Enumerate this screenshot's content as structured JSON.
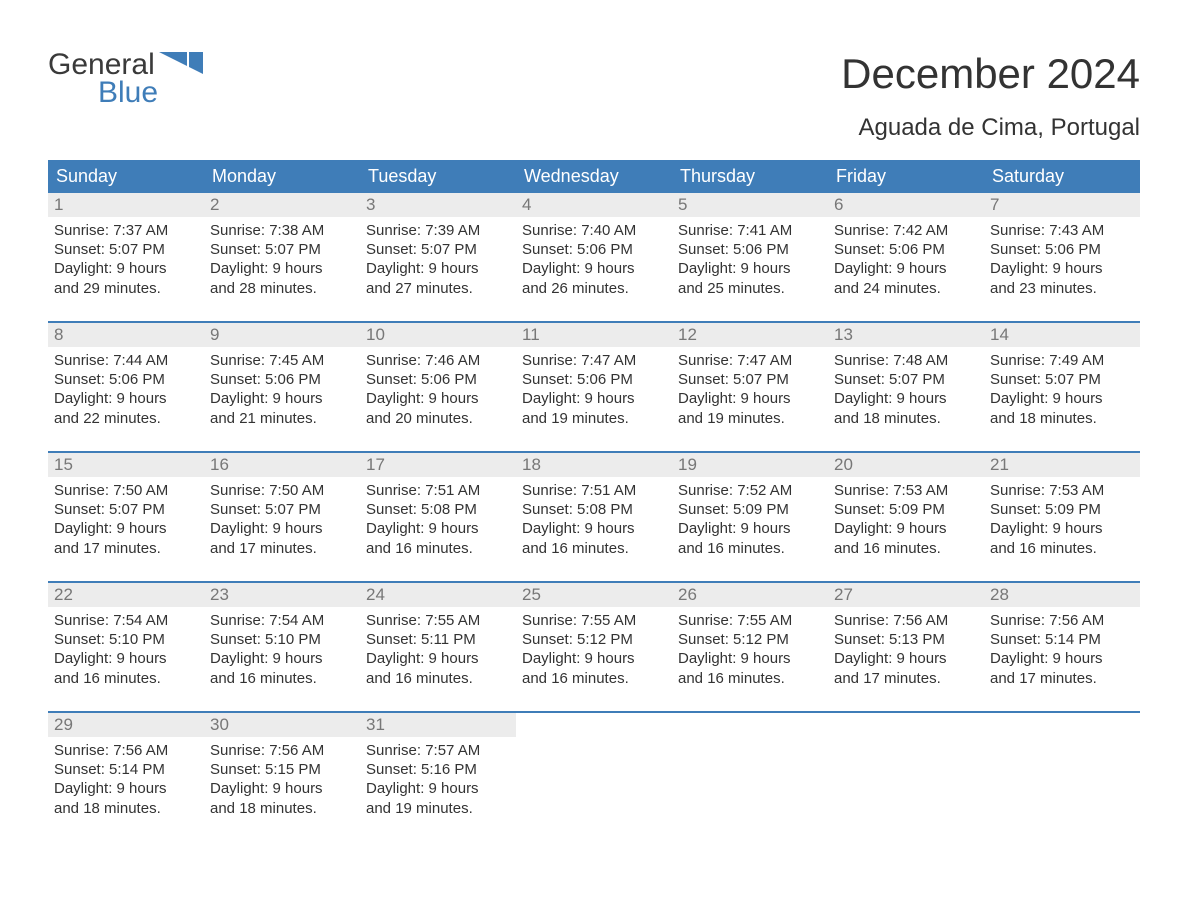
{
  "logo": {
    "word1": "General",
    "word2": "Blue"
  },
  "title": "December 2024",
  "subtitle": "Aguada de Cima, Portugal",
  "colors": {
    "header_bg": "#3f7db8",
    "header_text": "#ffffff",
    "daynum_bg": "#ececec",
    "daynum_text": "#777777",
    "body_text": "#333333",
    "rule": "#3f7db8",
    "page_bg": "#ffffff",
    "logo_gray": "#3a3a3a",
    "logo_blue": "#3f7db8"
  },
  "typography": {
    "title_fontsize": 42,
    "subtitle_fontsize": 24,
    "header_fontsize": 18,
    "daynum_fontsize": 17,
    "body_fontsize": 15,
    "logo_fontsize": 30
  },
  "layout": {
    "columns": 7,
    "weeks": 5
  },
  "days_of_week": [
    "Sunday",
    "Monday",
    "Tuesday",
    "Wednesday",
    "Thursday",
    "Friday",
    "Saturday"
  ],
  "weeks": [
    [
      {
        "num": "1",
        "sunrise": "Sunrise: 7:37 AM",
        "sunset": "Sunset: 5:07 PM",
        "dl1": "Daylight: 9 hours",
        "dl2": "and 29 minutes."
      },
      {
        "num": "2",
        "sunrise": "Sunrise: 7:38 AM",
        "sunset": "Sunset: 5:07 PM",
        "dl1": "Daylight: 9 hours",
        "dl2": "and 28 minutes."
      },
      {
        "num": "3",
        "sunrise": "Sunrise: 7:39 AM",
        "sunset": "Sunset: 5:07 PM",
        "dl1": "Daylight: 9 hours",
        "dl2": "and 27 minutes."
      },
      {
        "num": "4",
        "sunrise": "Sunrise: 7:40 AM",
        "sunset": "Sunset: 5:06 PM",
        "dl1": "Daylight: 9 hours",
        "dl2": "and 26 minutes."
      },
      {
        "num": "5",
        "sunrise": "Sunrise: 7:41 AM",
        "sunset": "Sunset: 5:06 PM",
        "dl1": "Daylight: 9 hours",
        "dl2": "and 25 minutes."
      },
      {
        "num": "6",
        "sunrise": "Sunrise: 7:42 AM",
        "sunset": "Sunset: 5:06 PM",
        "dl1": "Daylight: 9 hours",
        "dl2": "and 24 minutes."
      },
      {
        "num": "7",
        "sunrise": "Sunrise: 7:43 AM",
        "sunset": "Sunset: 5:06 PM",
        "dl1": "Daylight: 9 hours",
        "dl2": "and 23 minutes."
      }
    ],
    [
      {
        "num": "8",
        "sunrise": "Sunrise: 7:44 AM",
        "sunset": "Sunset: 5:06 PM",
        "dl1": "Daylight: 9 hours",
        "dl2": "and 22 minutes."
      },
      {
        "num": "9",
        "sunrise": "Sunrise: 7:45 AM",
        "sunset": "Sunset: 5:06 PM",
        "dl1": "Daylight: 9 hours",
        "dl2": "and 21 minutes."
      },
      {
        "num": "10",
        "sunrise": "Sunrise: 7:46 AM",
        "sunset": "Sunset: 5:06 PM",
        "dl1": "Daylight: 9 hours",
        "dl2": "and 20 minutes."
      },
      {
        "num": "11",
        "sunrise": "Sunrise: 7:47 AM",
        "sunset": "Sunset: 5:06 PM",
        "dl1": "Daylight: 9 hours",
        "dl2": "and 19 minutes."
      },
      {
        "num": "12",
        "sunrise": "Sunrise: 7:47 AM",
        "sunset": "Sunset: 5:07 PM",
        "dl1": "Daylight: 9 hours",
        "dl2": "and 19 minutes."
      },
      {
        "num": "13",
        "sunrise": "Sunrise: 7:48 AM",
        "sunset": "Sunset: 5:07 PM",
        "dl1": "Daylight: 9 hours",
        "dl2": "and 18 minutes."
      },
      {
        "num": "14",
        "sunrise": "Sunrise: 7:49 AM",
        "sunset": "Sunset: 5:07 PM",
        "dl1": "Daylight: 9 hours",
        "dl2": "and 18 minutes."
      }
    ],
    [
      {
        "num": "15",
        "sunrise": "Sunrise: 7:50 AM",
        "sunset": "Sunset: 5:07 PM",
        "dl1": "Daylight: 9 hours",
        "dl2": "and 17 minutes."
      },
      {
        "num": "16",
        "sunrise": "Sunrise: 7:50 AM",
        "sunset": "Sunset: 5:07 PM",
        "dl1": "Daylight: 9 hours",
        "dl2": "and 17 minutes."
      },
      {
        "num": "17",
        "sunrise": "Sunrise: 7:51 AM",
        "sunset": "Sunset: 5:08 PM",
        "dl1": "Daylight: 9 hours",
        "dl2": "and 16 minutes."
      },
      {
        "num": "18",
        "sunrise": "Sunrise: 7:51 AM",
        "sunset": "Sunset: 5:08 PM",
        "dl1": "Daylight: 9 hours",
        "dl2": "and 16 minutes."
      },
      {
        "num": "19",
        "sunrise": "Sunrise: 7:52 AM",
        "sunset": "Sunset: 5:09 PM",
        "dl1": "Daylight: 9 hours",
        "dl2": "and 16 minutes."
      },
      {
        "num": "20",
        "sunrise": "Sunrise: 7:53 AM",
        "sunset": "Sunset: 5:09 PM",
        "dl1": "Daylight: 9 hours",
        "dl2": "and 16 minutes."
      },
      {
        "num": "21",
        "sunrise": "Sunrise: 7:53 AM",
        "sunset": "Sunset: 5:09 PM",
        "dl1": "Daylight: 9 hours",
        "dl2": "and 16 minutes."
      }
    ],
    [
      {
        "num": "22",
        "sunrise": "Sunrise: 7:54 AM",
        "sunset": "Sunset: 5:10 PM",
        "dl1": "Daylight: 9 hours",
        "dl2": "and 16 minutes."
      },
      {
        "num": "23",
        "sunrise": "Sunrise: 7:54 AM",
        "sunset": "Sunset: 5:10 PM",
        "dl1": "Daylight: 9 hours",
        "dl2": "and 16 minutes."
      },
      {
        "num": "24",
        "sunrise": "Sunrise: 7:55 AM",
        "sunset": "Sunset: 5:11 PM",
        "dl1": "Daylight: 9 hours",
        "dl2": "and 16 minutes."
      },
      {
        "num": "25",
        "sunrise": "Sunrise: 7:55 AM",
        "sunset": "Sunset: 5:12 PM",
        "dl1": "Daylight: 9 hours",
        "dl2": "and 16 minutes."
      },
      {
        "num": "26",
        "sunrise": "Sunrise: 7:55 AM",
        "sunset": "Sunset: 5:12 PM",
        "dl1": "Daylight: 9 hours",
        "dl2": "and 16 minutes."
      },
      {
        "num": "27",
        "sunrise": "Sunrise: 7:56 AM",
        "sunset": "Sunset: 5:13 PM",
        "dl1": "Daylight: 9 hours",
        "dl2": "and 17 minutes."
      },
      {
        "num": "28",
        "sunrise": "Sunrise: 7:56 AM",
        "sunset": "Sunset: 5:14 PM",
        "dl1": "Daylight: 9 hours",
        "dl2": "and 17 minutes."
      }
    ],
    [
      {
        "num": "29",
        "sunrise": "Sunrise: 7:56 AM",
        "sunset": "Sunset: 5:14 PM",
        "dl1": "Daylight: 9 hours",
        "dl2": "and 18 minutes."
      },
      {
        "num": "30",
        "sunrise": "Sunrise: 7:56 AM",
        "sunset": "Sunset: 5:15 PM",
        "dl1": "Daylight: 9 hours",
        "dl2": "and 18 minutes."
      },
      {
        "num": "31",
        "sunrise": "Sunrise: 7:57 AM",
        "sunset": "Sunset: 5:16 PM",
        "dl1": "Daylight: 9 hours",
        "dl2": "and 19 minutes."
      },
      {
        "empty": true
      },
      {
        "empty": true
      },
      {
        "empty": true
      },
      {
        "empty": true
      }
    ]
  ]
}
